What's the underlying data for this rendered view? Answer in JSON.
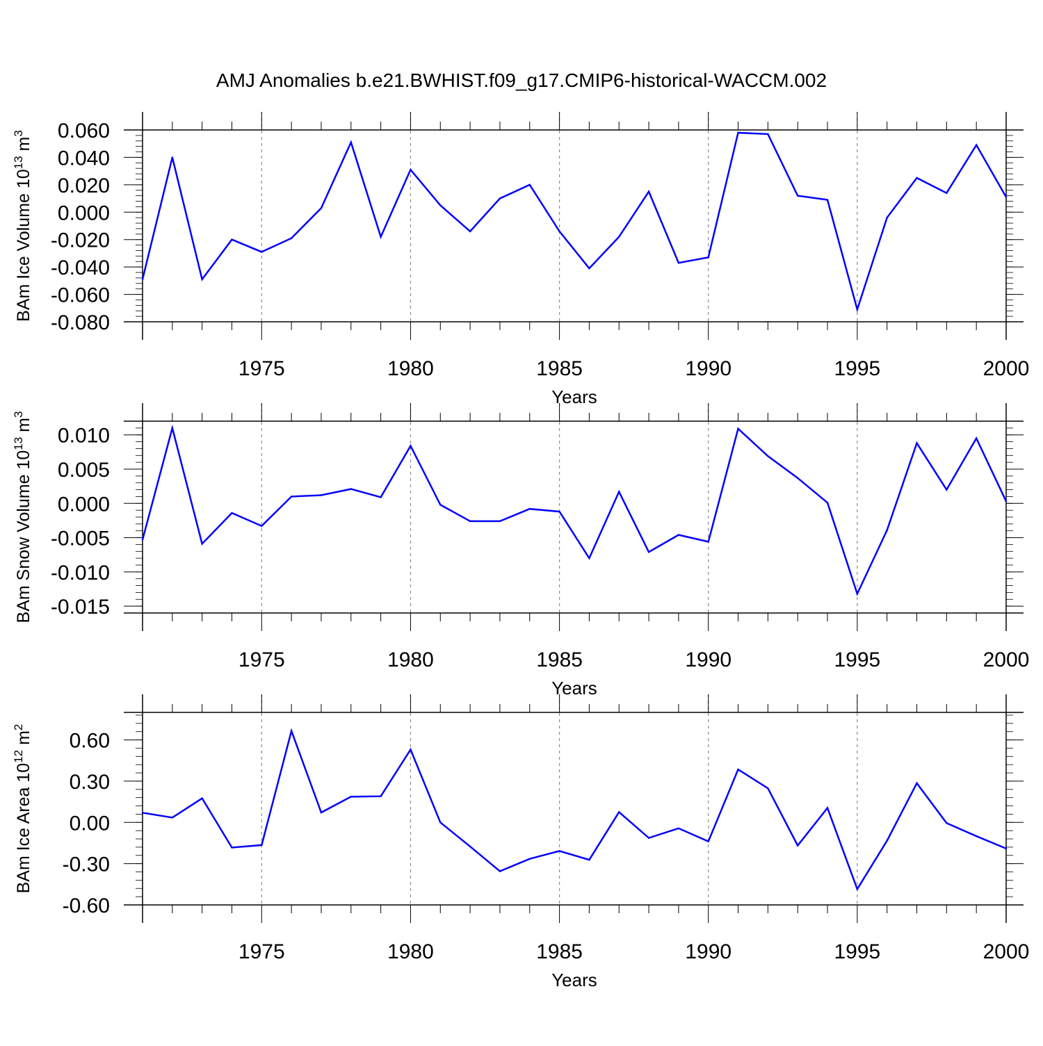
{
  "title": "AMJ Anomalies b.e21.BWHIST.f09_g17.CMIP6-historical-WACCM.002",
  "line_color": "#0000ff",
  "chart_data": [
    {
      "type": "line",
      "ylabel": "BAm Ice Volume 10",
      "ylabel_exp": "13",
      "ylabel_unit": " m",
      "ylabel_unit_exp": "3",
      "xlabel": "Years",
      "xlim": [
        1971,
        2000
      ],
      "ylim": [
        -0.08,
        0.06
      ],
      "yticks": [
        -0.08,
        -0.06,
        -0.04,
        -0.02,
        0.0,
        0.02,
        0.04,
        0.06
      ],
      "ytick_labels": [
        "-0.080",
        "-0.060",
        "-0.040",
        "-0.020",
        "0.000",
        "0.020",
        "0.040",
        "0.060"
      ],
      "xticks": [
        1975,
        1980,
        1985,
        1990,
        1995,
        2000
      ],
      "xtick_labels": [
        "1975",
        "1980",
        "1985",
        "1990",
        "1995",
        "2000"
      ],
      "x": [
        1971,
        1972,
        1973,
        1974,
        1975,
        1976,
        1977,
        1978,
        1979,
        1980,
        1981,
        1982,
        1983,
        1984,
        1985,
        1986,
        1987,
        1988,
        1989,
        1990,
        1991,
        1992,
        1993,
        1994,
        1995,
        1996,
        1997,
        1998,
        1999,
        2000
      ],
      "values": [
        -0.049,
        0.04,
        -0.049,
        -0.02,
        -0.029,
        -0.019,
        0.003,
        0.051,
        -0.018,
        0.031,
        0.005,
        -0.014,
        0.01,
        0.02,
        -0.014,
        -0.041,
        -0.018,
        0.015,
        -0.037,
        -0.033,
        0.058,
        0.057,
        0.012,
        0.009,
        -0.071,
        -0.004,
        0.025,
        0.014,
        0.049,
        0.011
      ]
    },
    {
      "type": "line",
      "ylabel": "BAm Snow Volume 10",
      "ylabel_exp": "13",
      "ylabel_unit": " m",
      "ylabel_unit_exp": "3",
      "xlabel": "Years",
      "xlim": [
        1971,
        2000
      ],
      "ylim": [
        -0.016,
        0.012
      ],
      "yticks": [
        -0.015,
        -0.01,
        -0.005,
        0.0,
        0.005,
        0.01
      ],
      "ytick_labels": [
        "-0.015",
        "-0.010",
        "-0.005",
        "0.000",
        "0.005",
        "0.010"
      ],
      "xticks": [
        1975,
        1980,
        1985,
        1990,
        1995,
        2000
      ],
      "xtick_labels": [
        "1975",
        "1980",
        "1985",
        "1990",
        "1995",
        "2000"
      ],
      "x": [
        1971,
        1972,
        1973,
        1974,
        1975,
        1976,
        1977,
        1978,
        1979,
        1980,
        1981,
        1982,
        1983,
        1984,
        1985,
        1986,
        1987,
        1988,
        1989,
        1990,
        1991,
        1992,
        1993,
        1994,
        1995,
        1996,
        1997,
        1998,
        1999,
        2000
      ],
      "values": [
        -0.0053,
        0.011,
        -0.0059,
        -0.0014,
        -0.0033,
        0.001,
        0.0012,
        0.0021,
        0.0009,
        0.0084,
        -0.0002,
        -0.0026,
        -0.0026,
        -0.0008,
        -0.0012,
        -0.008,
        0.0017,
        -0.0071,
        -0.0046,
        -0.0056,
        0.0109,
        0.0069,
        0.0037,
        0.0001,
        -0.0132,
        -0.0039,
        0.0088,
        0.002,
        0.0095,
        0.0003
      ]
    },
    {
      "type": "line",
      "ylabel": "BAm Ice Area 10",
      "ylabel_exp": "12",
      "ylabel_unit": " m",
      "ylabel_unit_exp": "2",
      "xlabel": "Years",
      "xlim": [
        1971,
        2000
      ],
      "ylim": [
        -0.6,
        0.8
      ],
      "yticks": [
        -0.6,
        -0.3,
        0.0,
        0.3,
        0.6
      ],
      "ytick_labels": [
        "-0.60",
        "-0.30",
        "0.00",
        "0.30",
        "0.60"
      ],
      "xticks": [
        1975,
        1980,
        1985,
        1990,
        1995,
        2000
      ],
      "xtick_labels": [
        "1975",
        "1980",
        "1985",
        "1990",
        "1995",
        "2000"
      ],
      "x": [
        1971,
        1972,
        1973,
        1974,
        1975,
        1976,
        1977,
        1978,
        1979,
        1980,
        1981,
        1982,
        1983,
        1984,
        1985,
        1986,
        1987,
        1988,
        1989,
        1990,
        1991,
        1992,
        1993,
        1994,
        1995,
        1996,
        1997,
        1998,
        1999,
        2000
      ],
      "values": [
        0.07,
        0.035,
        0.175,
        -0.183,
        -0.165,
        0.665,
        0.072,
        0.187,
        0.19,
        0.53,
        0.0,
        -0.175,
        -0.355,
        -0.265,
        -0.208,
        -0.272,
        0.075,
        -0.113,
        -0.043,
        -0.138,
        0.385,
        0.248,
        -0.168,
        0.105,
        -0.485,
        -0.133,
        0.285,
        -0.005,
        -0.1,
        -0.19
      ]
    }
  ]
}
